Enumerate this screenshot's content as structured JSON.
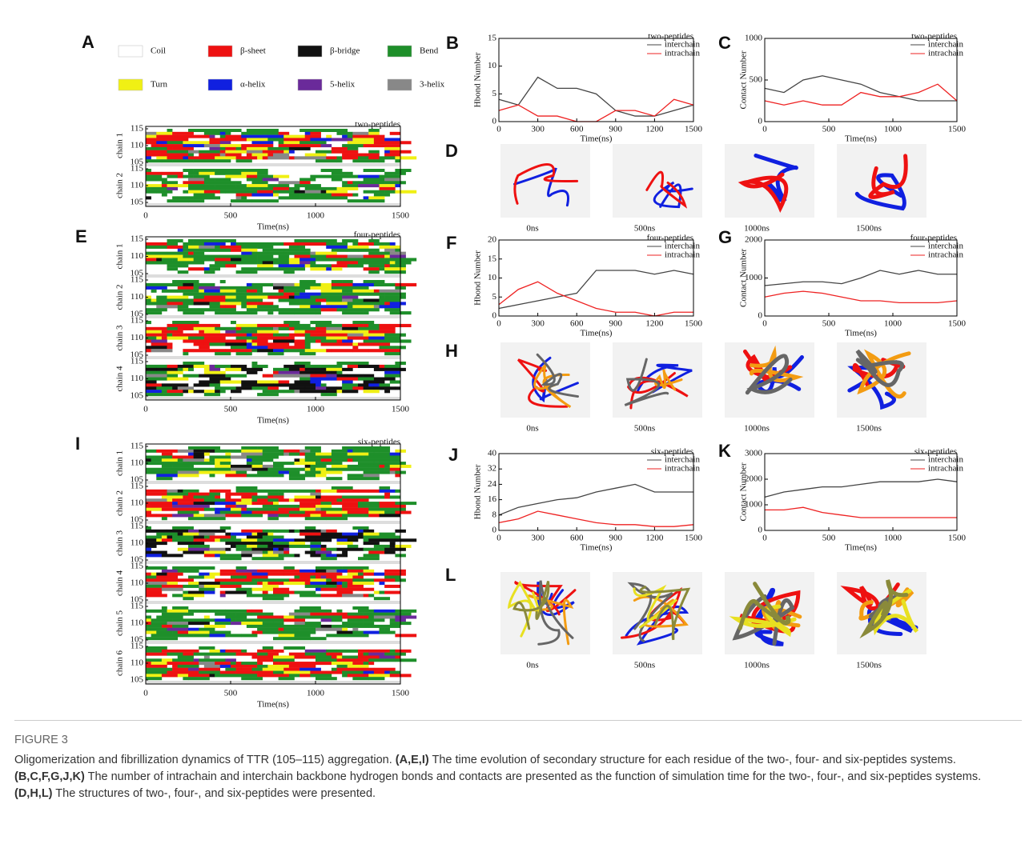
{
  "legend": [
    {
      "label": "Coil",
      "color": "#ffffff"
    },
    {
      "label": "β-sheet",
      "color": "#ee1111"
    },
    {
      "label": "β-bridge",
      "color": "#111111"
    },
    {
      "label": "Bend",
      "color": "#1e8f2a"
    },
    {
      "label": "Turn",
      "color": "#f0f014"
    },
    {
      "label": "α-helix",
      "color": "#1020e0"
    },
    {
      "label": "5-helix",
      "color": "#6a2a9a"
    },
    {
      "label": "3-helix",
      "color": "#888888"
    }
  ],
  "legend_letter": "A",
  "dssp_panels": [
    {
      "letter": "A",
      "title": "two-peptides",
      "chains": [
        "chain 1",
        "chain 2"
      ],
      "xlabel": "Time(ns)",
      "xlim": [
        0,
        1500
      ],
      "xticks": [
        0,
        500,
        1000,
        1500
      ],
      "yticks": [
        105,
        110,
        115
      ]
    },
    {
      "letter": "E",
      "title": "four-peptides",
      "chains": [
        "chain 1",
        "chain 2",
        "chain 3",
        "chain 4"
      ],
      "xlabel": "Time(ns)",
      "xlim": [
        0,
        1500
      ],
      "xticks": [
        0,
        500,
        1000,
        1500
      ],
      "yticks": [
        105,
        110,
        115
      ]
    },
    {
      "letter": "I",
      "title": "six-peptides",
      "chains": [
        "chain 1",
        "chain 2",
        "chain 3",
        "chain 4",
        "chain 5",
        "chain 6"
      ],
      "xlabel": "Time(ns)",
      "xlim": [
        0,
        1500
      ],
      "xticks": [
        0,
        500,
        1000,
        1500
      ],
      "yticks": [
        105,
        110,
        115
      ]
    }
  ],
  "chart_data": [
    {
      "type": "line",
      "panel": "B",
      "title": "two-peptides",
      "xlabel": "Time(ns)",
      "ylabel": "Hbond Number",
      "x": [
        0,
        150,
        300,
        450,
        600,
        750,
        900,
        1050,
        1200,
        1350,
        1500
      ],
      "xlim": [
        0,
        1500
      ],
      "xticks": [
        0,
        300,
        600,
        900,
        1200,
        1500
      ],
      "ylim": [
        0,
        15
      ],
      "yticks": [
        0,
        5,
        10,
        15
      ],
      "series": [
        {
          "name": "interchain",
          "color": "#444444",
          "values": [
            4,
            3,
            8,
            6,
            6,
            5,
            2,
            1,
            1,
            2,
            3
          ]
        },
        {
          "name": "intrachain",
          "color": "#ee2222",
          "values": [
            2,
            3,
            1,
            1,
            0,
            0,
            2,
            2,
            1,
            4,
            3
          ]
        }
      ]
    },
    {
      "type": "line",
      "panel": "C",
      "title": "two-peptides",
      "xlabel": "Time(ns)",
      "ylabel": "Contact Number",
      "x": [
        0,
        150,
        300,
        450,
        600,
        750,
        900,
        1050,
        1200,
        1350,
        1500
      ],
      "xlim": [
        0,
        1500
      ],
      "xticks": [
        0,
        500,
        1000,
        1500
      ],
      "ylim": [
        0,
        1000
      ],
      "yticks": [
        0,
        500,
        1000
      ],
      "series": [
        {
          "name": "interchain",
          "color": "#444444",
          "values": [
            400,
            350,
            500,
            550,
            500,
            450,
            350,
            300,
            250,
            250,
            250
          ]
        },
        {
          "name": "intrachain",
          "color": "#ee2222",
          "values": [
            250,
            200,
            250,
            200,
            200,
            350,
            300,
            300,
            350,
            450,
            250
          ]
        }
      ]
    },
    {
      "type": "line",
      "panel": "F",
      "title": "four-peptides",
      "xlabel": "Time(ns)",
      "ylabel": "Hbond Number",
      "x": [
        0,
        150,
        300,
        450,
        600,
        750,
        900,
        1050,
        1200,
        1350,
        1500
      ],
      "xlim": [
        0,
        1500
      ],
      "xticks": [
        0,
        300,
        600,
        900,
        1200,
        1500
      ],
      "ylim": [
        0,
        20
      ],
      "yticks": [
        0,
        5,
        10,
        15,
        20
      ],
      "series": [
        {
          "name": "interchain",
          "color": "#444444",
          "values": [
            2,
            3,
            4,
            5,
            6,
            12,
            12,
            12,
            11,
            12,
            11
          ]
        },
        {
          "name": "intrachain",
          "color": "#ee2222",
          "values": [
            3,
            7,
            9,
            6,
            4,
            2,
            1,
            1,
            0,
            1,
            1
          ]
        }
      ]
    },
    {
      "type": "line",
      "panel": "G",
      "title": "four-peptides",
      "xlabel": "Time(ns)",
      "ylabel": "Contact Number",
      "x": [
        0,
        150,
        300,
        450,
        600,
        750,
        900,
        1050,
        1200,
        1350,
        1500
      ],
      "xlim": [
        0,
        1500
      ],
      "xticks": [
        0,
        500,
        1000,
        1500
      ],
      "ylim": [
        0,
        2000
      ],
      "yticks": [
        0,
        1000,
        2000
      ],
      "series": [
        {
          "name": "interchain",
          "color": "#444444",
          "values": [
            800,
            850,
            900,
            900,
            850,
            1000,
            1200,
            1100,
            1200,
            1100,
            1100
          ]
        },
        {
          "name": "intrachain",
          "color": "#ee2222",
          "values": [
            500,
            600,
            650,
            600,
            500,
            400,
            400,
            350,
            350,
            350,
            400
          ]
        }
      ]
    },
    {
      "type": "line",
      "panel": "J",
      "title": "six-peptides",
      "xlabel": "Time(ns)",
      "ylabel": "Hbond Number",
      "x": [
        0,
        150,
        300,
        450,
        600,
        750,
        900,
        1050,
        1200,
        1350,
        1500
      ],
      "xlim": [
        0,
        1500
      ],
      "xticks": [
        0,
        300,
        600,
        900,
        1200,
        1500
      ],
      "ylim": [
        0,
        40
      ],
      "yticks": [
        0,
        8,
        16,
        24,
        32,
        40
      ],
      "series": [
        {
          "name": "interchain",
          "color": "#444444",
          "values": [
            8,
            12,
            14,
            16,
            17,
            20,
            22,
            24,
            20,
            20,
            20
          ]
        },
        {
          "name": "intrachain",
          "color": "#ee2222",
          "values": [
            4,
            6,
            10,
            8,
            6,
            4,
            3,
            3,
            2,
            2,
            3
          ]
        }
      ]
    },
    {
      "type": "line",
      "panel": "K",
      "title": "six-peptides",
      "xlabel": "Time(ns)",
      "ylabel": "Contact Number",
      "x": [
        0,
        150,
        300,
        450,
        600,
        750,
        900,
        1050,
        1200,
        1350,
        1500
      ],
      "xlim": [
        0,
        1500
      ],
      "xticks": [
        0,
        500,
        1000,
        1500
      ],
      "ylim": [
        0,
        3000
      ],
      "yticks": [
        0,
        1000,
        2000,
        3000
      ],
      "series": [
        {
          "name": "interchain",
          "color": "#444444",
          "values": [
            1300,
            1500,
            1600,
            1700,
            1700,
            1800,
            1900,
            1900,
            1900,
            2000,
            1900
          ]
        },
        {
          "name": "intrachain",
          "color": "#ee2222",
          "values": [
            800,
            800,
            900,
            700,
            600,
            500,
            500,
            500,
            500,
            500,
            500
          ]
        }
      ]
    }
  ],
  "snapshots": [
    {
      "letter": "D",
      "labels": [
        "0ns",
        "500ns",
        "1000ns",
        "1500ns"
      ]
    },
    {
      "letter": "H",
      "labels": [
        "0ns",
        "500ns",
        "1000ns",
        "1500ns"
      ]
    },
    {
      "letter": "L",
      "labels": [
        "0ns",
        "500ns",
        "1000ns",
        "1500ns"
      ]
    }
  ],
  "caption": {
    "figure": "FIGURE 3",
    "intro": "Oligomerization and fibrillization dynamics of TTR (105–115) aggregation.",
    "items": [
      {
        "panels": "(A,E,I)",
        "text": "The time evolution of secondary structure for each residue of the two-, four- and six-peptides systems."
      },
      {
        "panels": "(B,C,F,G,J,K)",
        "text": "The number of intrachain and interchain backbone hydrogen bonds and contacts are presented as the function of simulation time for the two-, four-, and six-peptides systems."
      },
      {
        "panels": "(D,H,L)",
        "text": "The structures of two-, four-, and six-peptides were presented."
      }
    ]
  }
}
